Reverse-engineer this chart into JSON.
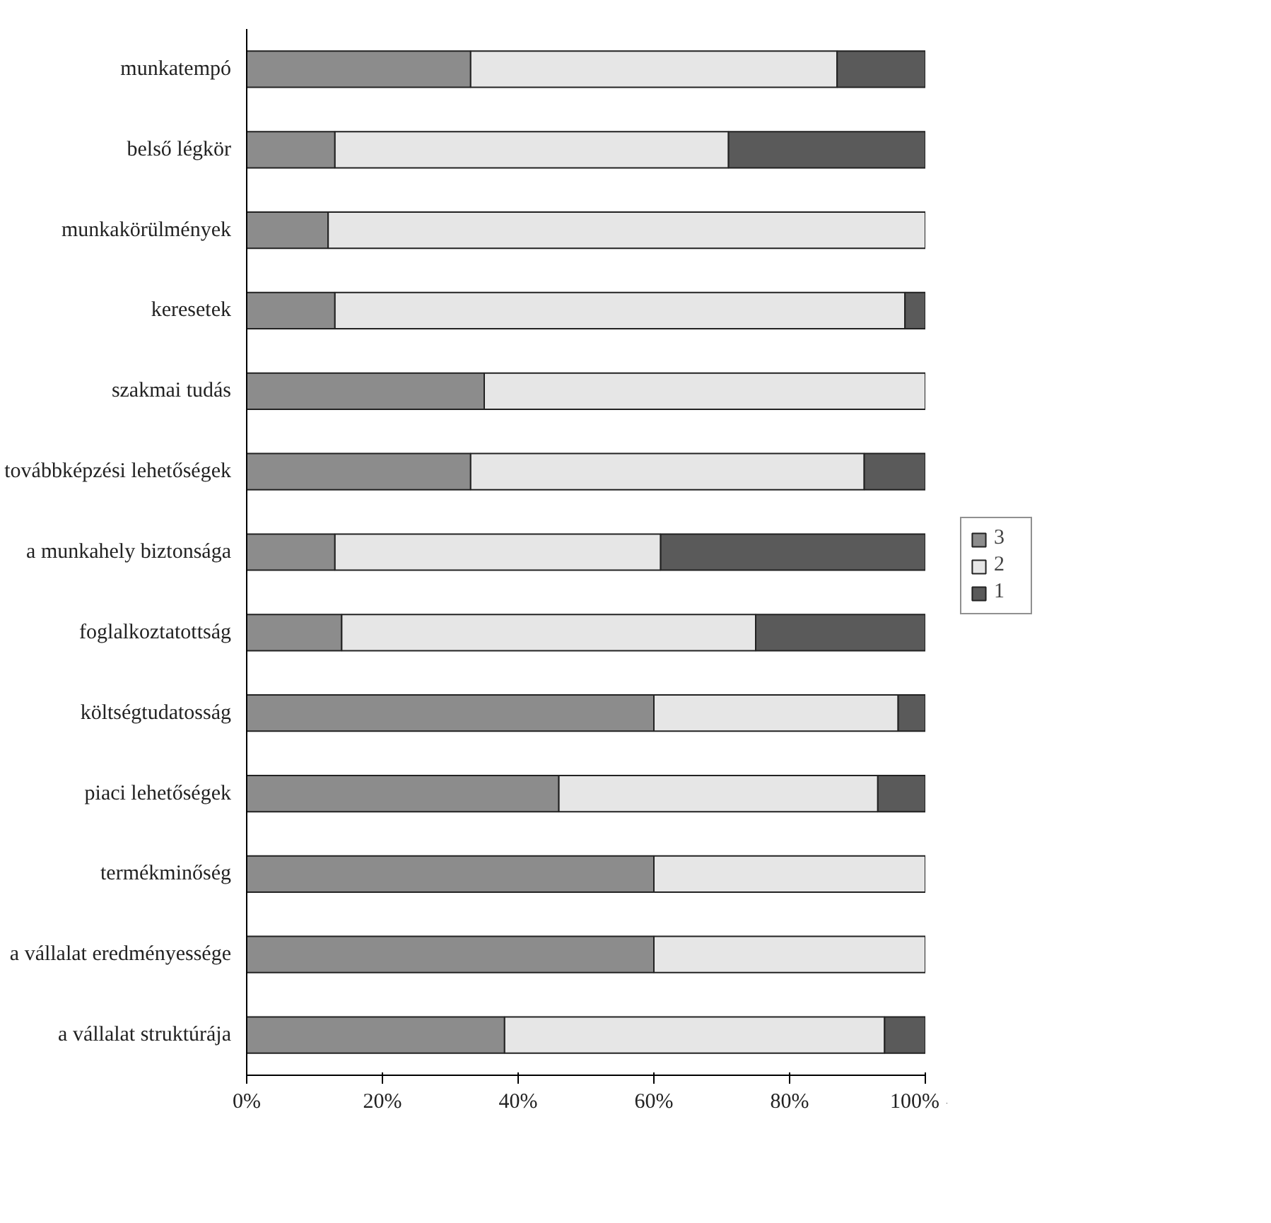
{
  "chart_data": {
    "type": "bar",
    "orientation": "horizontal",
    "stacked": true,
    "categories": [
      "munkatempó",
      "belső légkör",
      "munkakörülmények",
      "keresetek",
      "szakmai tudás",
      "továbbképzési lehetőségek",
      "a munkahely biztonsága",
      "foglalkoztatottság",
      "költségtudatosság",
      "piaci lehetőségek",
      "termékminőség",
      "a vállalat eredményessége",
      "a vállalat struktúrája"
    ],
    "series": [
      {
        "name": "3",
        "color": "#8c8c8c",
        "values": [
          33,
          13,
          12,
          13,
          35,
          33,
          13,
          14,
          60,
          46,
          60,
          60,
          38
        ]
      },
      {
        "name": "2",
        "color": "#e6e6e6",
        "values": [
          54,
          58,
          88,
          84,
          65,
          58,
          48,
          61,
          36,
          47,
          40,
          40,
          56
        ]
      },
      {
        "name": "1",
        "color": "#5a5a5a",
        "values": [
          13,
          29,
          0,
          3,
          0,
          9,
          39,
          25,
          4,
          7,
          0,
          0,
          6
        ]
      }
    ],
    "xlim": [
      0,
      100
    ],
    "xticks": [
      {
        "value": 0,
        "label": "0%"
      },
      {
        "value": 20,
        "label": "20%"
      },
      {
        "value": 40,
        "label": "40%"
      },
      {
        "value": 60,
        "label": "60%"
      },
      {
        "value": 80,
        "label": "80%"
      },
      {
        "value": 100,
        "label": "100%"
      }
    ],
    "legend": "right",
    "grid": false
  }
}
